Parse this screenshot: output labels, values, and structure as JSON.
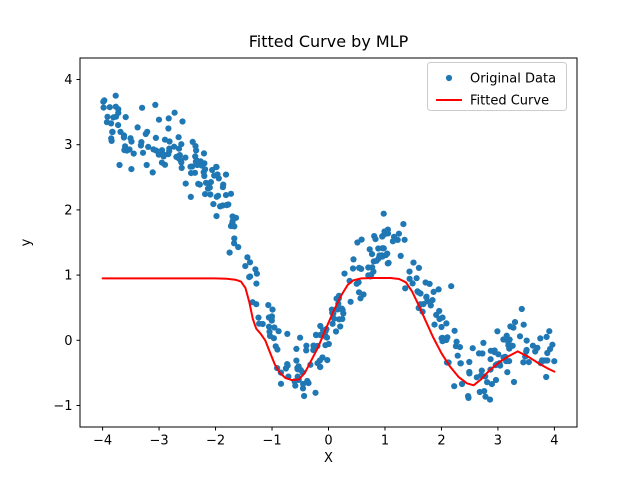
{
  "figure": {
    "background_color": "#ffffff"
  },
  "chart_data": {
    "type": "scatter",
    "title": "Fitted Curve by MLP",
    "xlabel": "X",
    "ylabel": "y",
    "xlim": [
      -4.4,
      4.4
    ],
    "ylim": [
      -1.33,
      4.33
    ],
    "grid": false,
    "frame_color": "#000000",
    "xticks": [
      {
        "v": -4,
        "label": "−4"
      },
      {
        "v": -3,
        "label": "−3"
      },
      {
        "v": -2,
        "label": "−2"
      },
      {
        "v": -1,
        "label": "−1"
      },
      {
        "v": 0,
        "label": "0"
      },
      {
        "v": 1,
        "label": "1"
      },
      {
        "v": 2,
        "label": "2"
      },
      {
        "v": 3,
        "label": "3"
      },
      {
        "v": 4,
        "label": "4"
      }
    ],
    "yticks": [
      {
        "v": -1,
        "label": "−1"
      },
      {
        "v": 0,
        "label": "0"
      },
      {
        "v": 1,
        "label": "1"
      },
      {
        "v": 2,
        "label": "2"
      },
      {
        "v": 3,
        "label": "3"
      },
      {
        "v": 4,
        "label": "4"
      }
    ],
    "legend": {
      "position": "upper right",
      "items": [
        {
          "label": "Original Data",
          "type": "scatter",
          "color": "#1f77b4"
        },
        {
          "label": "Fitted Curve",
          "type": "line",
          "color": "#ff0000"
        }
      ]
    },
    "series": [
      {
        "name": "Original Data",
        "type": "scatter",
        "color": "#1f77b4",
        "marker_radius": 3.1,
        "n_points": 400,
        "x_range": [
          -4,
          4
        ],
        "noise_std": 0.25,
        "seed": 42,
        "y_extent_observed": [
          -1.05,
          4.06
        ],
        "trend_points": [
          [
            -4.0,
            3.55
          ],
          [
            -3.75,
            3.3
          ],
          [
            -3.5,
            3.1
          ],
          [
            -3.2,
            3.05
          ],
          [
            -2.9,
            3.0
          ],
          [
            -2.6,
            2.9
          ],
          [
            -2.3,
            2.7
          ],
          [
            -2.0,
            2.4
          ],
          [
            -1.75,
            1.95
          ],
          [
            -1.5,
            1.4
          ],
          [
            -1.25,
            0.75
          ],
          [
            -1.0,
            0.1
          ],
          [
            -0.8,
            -0.3
          ],
          [
            -0.6,
            -0.5
          ],
          [
            -0.4,
            -0.42
          ],
          [
            -0.2,
            -0.2
          ],
          [
            0.0,
            0.1
          ],
          [
            0.25,
            0.5
          ],
          [
            0.5,
            0.95
          ],
          [
            0.75,
            1.35
          ],
          [
            0.95,
            1.55
          ],
          [
            1.1,
            1.55
          ],
          [
            1.3,
            1.35
          ],
          [
            1.55,
            0.95
          ],
          [
            1.8,
            0.5
          ],
          [
            2.05,
            0.05
          ],
          [
            2.3,
            -0.35
          ],
          [
            2.5,
            -0.52
          ],
          [
            2.7,
            -0.5
          ],
          [
            2.9,
            -0.35
          ],
          [
            3.1,
            -0.15
          ],
          [
            3.35,
            -0.02
          ],
          [
            3.6,
            -0.08
          ],
          [
            3.8,
            -0.2
          ],
          [
            4.0,
            -0.32
          ]
        ]
      },
      {
        "name": "Fitted Curve",
        "type": "line",
        "color": "#ff0000",
        "line_width": 2,
        "points": [
          [
            -4.0,
            0.95
          ],
          [
            -2.6,
            0.95
          ],
          [
            -2.0,
            0.95
          ],
          [
            -1.8,
            0.945
          ],
          [
            -1.65,
            0.93
          ],
          [
            -1.55,
            0.9
          ],
          [
            -1.47,
            0.8
          ],
          [
            -1.4,
            0.58
          ],
          [
            -1.34,
            0.33
          ],
          [
            -1.28,
            0.18
          ],
          [
            -1.2,
            0.1
          ],
          [
            -1.12,
            0.0
          ],
          [
            -1.03,
            -0.2
          ],
          [
            -0.95,
            -0.37
          ],
          [
            -0.86,
            -0.5
          ],
          [
            -0.76,
            -0.58
          ],
          [
            -0.65,
            -0.61
          ],
          [
            -0.52,
            -0.6
          ],
          [
            -0.42,
            -0.5
          ],
          [
            -0.3,
            -0.3
          ],
          [
            -0.18,
            -0.1
          ],
          [
            -0.05,
            0.17
          ],
          [
            0.08,
            0.43
          ],
          [
            0.22,
            0.68
          ],
          [
            0.34,
            0.85
          ],
          [
            0.44,
            0.92
          ],
          [
            0.58,
            0.95
          ],
          [
            0.8,
            0.955
          ],
          [
            1.1,
            0.955
          ],
          [
            1.25,
            0.94
          ],
          [
            1.37,
            0.89
          ],
          [
            1.48,
            0.75
          ],
          [
            1.6,
            0.53
          ],
          [
            1.72,
            0.3
          ],
          [
            1.85,
            0.05
          ],
          [
            2.0,
            -0.2
          ],
          [
            2.15,
            -0.4
          ],
          [
            2.3,
            -0.56
          ],
          [
            2.45,
            -0.66
          ],
          [
            2.57,
            -0.69
          ],
          [
            2.7,
            -0.6
          ],
          [
            2.85,
            -0.46
          ],
          [
            3.05,
            -0.32
          ],
          [
            3.2,
            -0.24
          ],
          [
            3.35,
            -0.17
          ],
          [
            3.55,
            -0.26
          ],
          [
            3.75,
            -0.37
          ],
          [
            3.9,
            -0.44
          ],
          [
            4.0,
            -0.48
          ]
        ]
      }
    ]
  }
}
